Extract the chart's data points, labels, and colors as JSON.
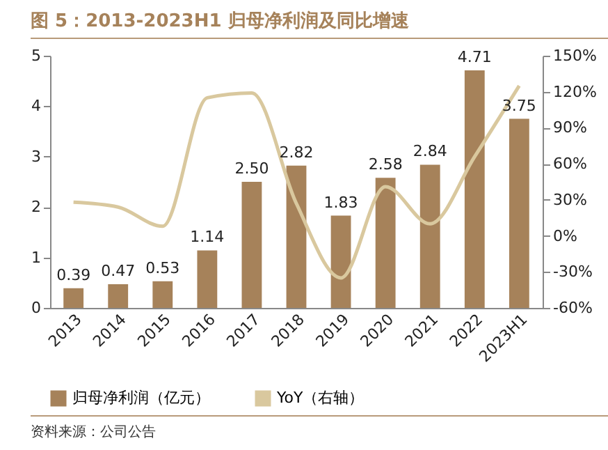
{
  "chart_data": {
    "type": "bar",
    "title": "图 5：2013-2023H1 归母净利润及同比增速",
    "categories": [
      "2013",
      "2014",
      "2015",
      "2016",
      "2017",
      "2018",
      "2019",
      "2020",
      "2021",
      "2022",
      "2023H1"
    ],
    "series": [
      {
        "name": "归母净利润（亿元）",
        "color": "#a6825a",
        "values": [
          0.39,
          0.47,
          0.53,
          1.14,
          2.5,
          2.82,
          1.83,
          2.58,
          2.84,
          4.71,
          3.75
        ]
      },
      {
        "name": "YoY（右轴）",
        "type": "line",
        "axis": "y2",
        "color": "#d9c89e",
        "values": [
          28,
          24,
          8,
          115,
          119,
          27,
          -35,
          41,
          10,
          66,
          125
        ]
      }
    ],
    "value_labels": [
      "0.39",
      "0.47",
      "0.53",
      "1.14",
      "2.50",
      "2.82",
      "1.83",
      "2.58",
      "2.84",
      "4.71",
      "3.75"
    ],
    "ylim": [
      0,
      5
    ],
    "yticks": [
      0,
      1,
      2,
      3,
      4,
      5
    ],
    "y2lim": [
      -60,
      150
    ],
    "y2ticks": [
      {
        "value": -60,
        "label": "-60%"
      },
      {
        "value": -30,
        "label": "-30%"
      },
      {
        "value": 0,
        "label": "0%"
      },
      {
        "value": 30,
        "label": "30%"
      },
      {
        "value": 60,
        "label": "60%"
      },
      {
        "value": 90,
        "label": "90%"
      },
      {
        "value": 120,
        "label": "120%"
      },
      {
        "value": 150,
        "label": "150%"
      }
    ],
    "legend": "bottom",
    "marker": "none",
    "grid": false,
    "annotations": [
      "资料来源：公司公告"
    ]
  }
}
